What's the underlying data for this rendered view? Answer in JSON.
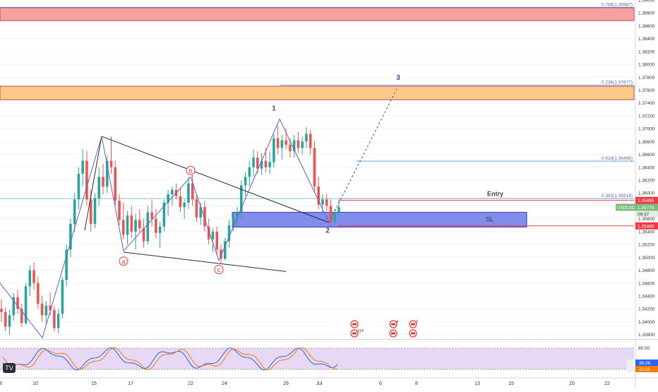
{
  "chart_data": {
    "type": "candlestick",
    "symbol": "USDCAD",
    "price_axis": {
      "range": [
        1.3373,
        1.39
      ],
      "ticks": [
        "1.39000",
        "1.38800",
        "1.38600",
        "1.38400",
        "1.38200",
        "1.38000",
        "1.37800",
        "1.37600",
        "1.37400",
        "1.37200",
        "1.37000",
        "1.36800",
        "1.36600",
        "1.36400",
        "1.36200",
        "1.36000",
        "1.35800",
        "1.35600",
        "1.35400",
        "1.35200",
        "1.35000",
        "1.34800",
        "1.34600",
        "1.34400",
        "1.34200",
        "1.34000",
        "1.33800"
      ]
    },
    "time_axis": {
      "labels": [
        "8",
        "10",
        "15",
        "17",
        "22",
        "24",
        "29",
        "Jul",
        "6",
        "8",
        "13",
        "15",
        "20",
        "22"
      ]
    },
    "price_labels": {
      "entry": "1.35885",
      "current": "1.35778",
      "countdown": "09:37",
      "stop": "1.35489",
      "current_symbol": "USDCAD"
    },
    "zones": [
      {
        "name": "supply",
        "from": 1.3888,
        "to": 1.3868,
        "color": "#f7a1a1"
      },
      {
        "name": "target",
        "from": 1.3766,
        "to": 1.3745,
        "color": "#fcc98a"
      },
      {
        "name": "demand",
        "from": 1.357,
        "to": 1.3547,
        "color": "#7b86ea"
      }
    ],
    "fib_levels": [
      {
        "label": "0.786(1.38887)",
        "price": 1.38887
      },
      {
        "label": "0.236(1.37677)",
        "price": 1.37677
      },
      {
        "label": "0.618(1.36496)",
        "price": 1.36496
      },
      {
        "label": "0.382(1.35914)",
        "price": 1.35914
      }
    ],
    "annotations": {
      "entry_text": "Entry",
      "sl_text": "SL",
      "wave_labels": [
        "1",
        "2",
        "3"
      ],
      "corrective_labels": [
        "a",
        "b",
        "c"
      ]
    },
    "ohlc": [
      [
        1.342,
        1.3435,
        1.34,
        1.3415
      ],
      [
        1.3415,
        1.3422,
        1.3385,
        1.3392
      ],
      [
        1.3392,
        1.3418,
        1.338,
        1.341
      ],
      [
        1.341,
        1.3445,
        1.3402,
        1.3438
      ],
      [
        1.3438,
        1.345,
        1.3412,
        1.342
      ],
      [
        1.342,
        1.3428,
        1.3392,
        1.3398
      ],
      [
        1.3398,
        1.346,
        1.3395,
        1.3455
      ],
      [
        1.3455,
        1.3488,
        1.344,
        1.348
      ],
      [
        1.348,
        1.3492,
        1.345,
        1.346
      ],
      [
        1.346,
        1.347,
        1.342,
        1.3428
      ],
      [
        1.3428,
        1.344,
        1.34,
        1.341
      ],
      [
        1.341,
        1.3432,
        1.3395,
        1.3425
      ],
      [
        1.3425,
        1.3445,
        1.341,
        1.3418
      ],
      [
        1.3418,
        1.3425,
        1.3385,
        1.339
      ],
      [
        1.339,
        1.342,
        1.3382,
        1.3412
      ],
      [
        1.3412,
        1.347,
        1.3405,
        1.3465
      ],
      [
        1.3465,
        1.352,
        1.3455,
        1.3512
      ],
      [
        1.3512,
        1.356,
        1.35,
        1.3552
      ],
      [
        1.3552,
        1.36,
        1.354,
        1.359
      ],
      [
        1.359,
        1.364,
        1.3575,
        1.363
      ],
      [
        1.363,
        1.3668,
        1.361,
        1.365
      ],
      [
        1.365,
        1.3665,
        1.358,
        1.359
      ],
      [
        1.359,
        1.3605,
        1.354,
        1.3552
      ],
      [
        1.3552,
        1.36,
        1.3545,
        1.3592
      ],
      [
        1.3592,
        1.364,
        1.358,
        1.3625
      ],
      [
        1.3625,
        1.3645,
        1.3598,
        1.361
      ],
      [
        1.361,
        1.3658,
        1.36,
        1.365
      ],
      [
        1.365,
        1.3688,
        1.363,
        1.364
      ],
      [
        1.364,
        1.365,
        1.358,
        1.3588
      ],
      [
        1.3588,
        1.3598,
        1.355,
        1.3558
      ],
      [
        1.3558,
        1.3585,
        1.3528,
        1.3535
      ],
      [
        1.3535,
        1.3572,
        1.352,
        1.3565
      ],
      [
        1.3565,
        1.358,
        1.353,
        1.354
      ],
      [
        1.354,
        1.3568,
        1.3512,
        1.3558
      ],
      [
        1.3558,
        1.3575,
        1.354,
        1.3545
      ],
      [
        1.3545,
        1.356,
        1.3515,
        1.3525
      ],
      [
        1.3525,
        1.358,
        1.352,
        1.357
      ],
      [
        1.357,
        1.359,
        1.3548,
        1.356
      ],
      [
        1.356,
        1.3575,
        1.353,
        1.3538
      ],
      [
        1.3538,
        1.3555,
        1.3515,
        1.3548
      ],
      [
        1.3548,
        1.359,
        1.354,
        1.3585
      ],
      [
        1.3585,
        1.3605,
        1.3565,
        1.3598
      ],
      [
        1.3598,
        1.361,
        1.358,
        1.3605
      ],
      [
        1.3605,
        1.3615,
        1.359,
        1.3595
      ],
      [
        1.3595,
        1.3608,
        1.357,
        1.3578
      ],
      [
        1.3578,
        1.359,
        1.356,
        1.3585
      ],
      [
        1.3585,
        1.3625,
        1.3575,
        1.3615
      ],
      [
        1.3615,
        1.3628,
        1.358,
        1.359
      ],
      [
        1.359,
        1.3598,
        1.3555,
        1.3562
      ],
      [
        1.3562,
        1.3585,
        1.355,
        1.3578
      ],
      [
        1.3578,
        1.3588,
        1.354,
        1.3548
      ],
      [
        1.3548,
        1.356,
        1.352,
        1.3528
      ],
      [
        1.3528,
        1.3545,
        1.3508,
        1.354
      ],
      [
        1.354,
        1.3548,
        1.3505,
        1.3512
      ],
      [
        1.3512,
        1.352,
        1.349,
        1.3498
      ],
      [
        1.3498,
        1.353,
        1.3495,
        1.3525
      ],
      [
        1.3525,
        1.3558,
        1.3515,
        1.355
      ],
      [
        1.355,
        1.3568,
        1.354,
        1.3562
      ],
      [
        1.3562,
        1.3578,
        1.3548,
        1.357
      ],
      [
        1.357,
        1.362,
        1.356,
        1.3612
      ],
      [
        1.3612,
        1.3632,
        1.3595,
        1.3625
      ],
      [
        1.3625,
        1.365,
        1.361,
        1.364
      ],
      [
        1.364,
        1.3668,
        1.3625,
        1.3655
      ],
      [
        1.3655,
        1.3665,
        1.363,
        1.3638
      ],
      [
        1.3638,
        1.3662,
        1.3628,
        1.365
      ],
      [
        1.365,
        1.367,
        1.3632,
        1.364
      ],
      [
        1.364,
        1.3665,
        1.363,
        1.3648
      ],
      [
        1.3648,
        1.3692,
        1.364,
        1.3685
      ],
      [
        1.3685,
        1.3705,
        1.366,
        1.367
      ],
      [
        1.367,
        1.369,
        1.3652,
        1.3682
      ],
      [
        1.3682,
        1.37,
        1.3668,
        1.3675
      ],
      [
        1.3675,
        1.3685,
        1.3655,
        1.3665
      ],
      [
        1.3665,
        1.369,
        1.3655,
        1.3682
      ],
      [
        1.3682,
        1.3695,
        1.3662,
        1.367
      ],
      [
        1.367,
        1.3688,
        1.366,
        1.368
      ],
      [
        1.368,
        1.3702,
        1.367,
        1.3692
      ],
      [
        1.3692,
        1.3698,
        1.366,
        1.367
      ],
      [
        1.367,
        1.368,
        1.36,
        1.361
      ],
      [
        1.361,
        1.3625,
        1.3575,
        1.3582
      ],
      [
        1.3582,
        1.3598,
        1.357,
        1.359
      ],
      [
        1.359,
        1.3598,
        1.3572,
        1.358
      ],
      [
        1.358,
        1.359,
        1.3548,
        1.3555
      ],
      [
        1.3555,
        1.3575,
        1.355,
        1.357
      ],
      [
        1.357,
        1.359,
        1.3562,
        1.3578
      ]
    ],
    "oscillator": {
      "levels": [
        "80.00",
        "20.00"
      ],
      "values": [
        {
          "label": "36.96",
          "color": "#2962ff"
        },
        {
          "label": "22.05",
          "color": "#f57c00"
        }
      ]
    }
  },
  "events": {
    "row1": [
      {
        "count": ""
      },
      {
        "count": "4"
      },
      {
        "count": "2"
      }
    ],
    "row2": [
      {
        "count": "113"
      },
      {
        "count": ""
      },
      {
        "count": ""
      }
    ]
  },
  "ui": {
    "brand_text": "TV",
    "colors": {
      "bull": "#26a69a",
      "bear": "#ef5350",
      "fib_line": "#5b8bd9",
      "trendline": "#2c2c2c",
      "wave": "#6a5acd",
      "entry_red": "#f23645",
      "price_green": "#7cb97c"
    }
  }
}
